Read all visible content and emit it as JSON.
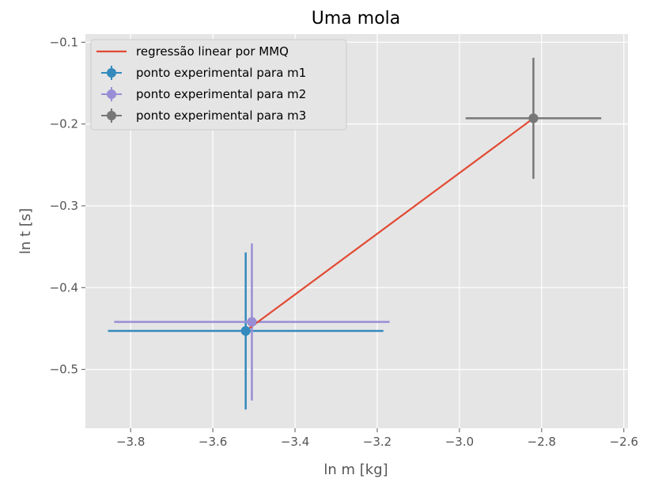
{
  "chart_data": {
    "type": "scatter",
    "title": "Uma mola",
    "xlabel": "ln m [kg]",
    "ylabel": "ln t [s]",
    "xlim": [
      -3.91,
      -2.59
    ],
    "ylim": [
      -0.572,
      -0.09
    ],
    "xticks": [
      -3.8,
      -3.6,
      -3.4,
      -3.2,
      -3.0,
      -2.8,
      -2.6
    ],
    "yticks": [
      -0.5,
      -0.4,
      -0.3,
      -0.2,
      -0.1
    ],
    "xtick_labels": [
      "−3.8",
      "−3.6",
      "−3.4",
      "−3.2",
      "−3.0",
      "−2.8",
      "−2.6"
    ],
    "ytick_labels": [
      "−0.5",
      "−0.4",
      "−0.3",
      "−0.2",
      "−0.1"
    ],
    "grid": true,
    "legend_position": "top-left",
    "regression": {
      "name": "regressão linear por MMQ",
      "color": "#E24A33",
      "x": [
        -3.52,
        -2.82
      ],
      "y": [
        -0.453,
        -0.193
      ]
    },
    "series": [
      {
        "name": "ponto experimental para m1",
        "color": "#348ABD",
        "x": -3.52,
        "y": -0.453,
        "xerr": 0.335,
        "yerr": 0.096
      },
      {
        "name": "ponto experimental para m2",
        "color": "#988ED5",
        "x": -3.505,
        "y": -0.442,
        "xerr": 0.335,
        "yerr": 0.096
      },
      {
        "name": "ponto experimental para m3",
        "color": "#777777",
        "x": -2.82,
        "y": -0.193,
        "xerr": 0.165,
        "yerr": 0.074
      }
    ]
  }
}
